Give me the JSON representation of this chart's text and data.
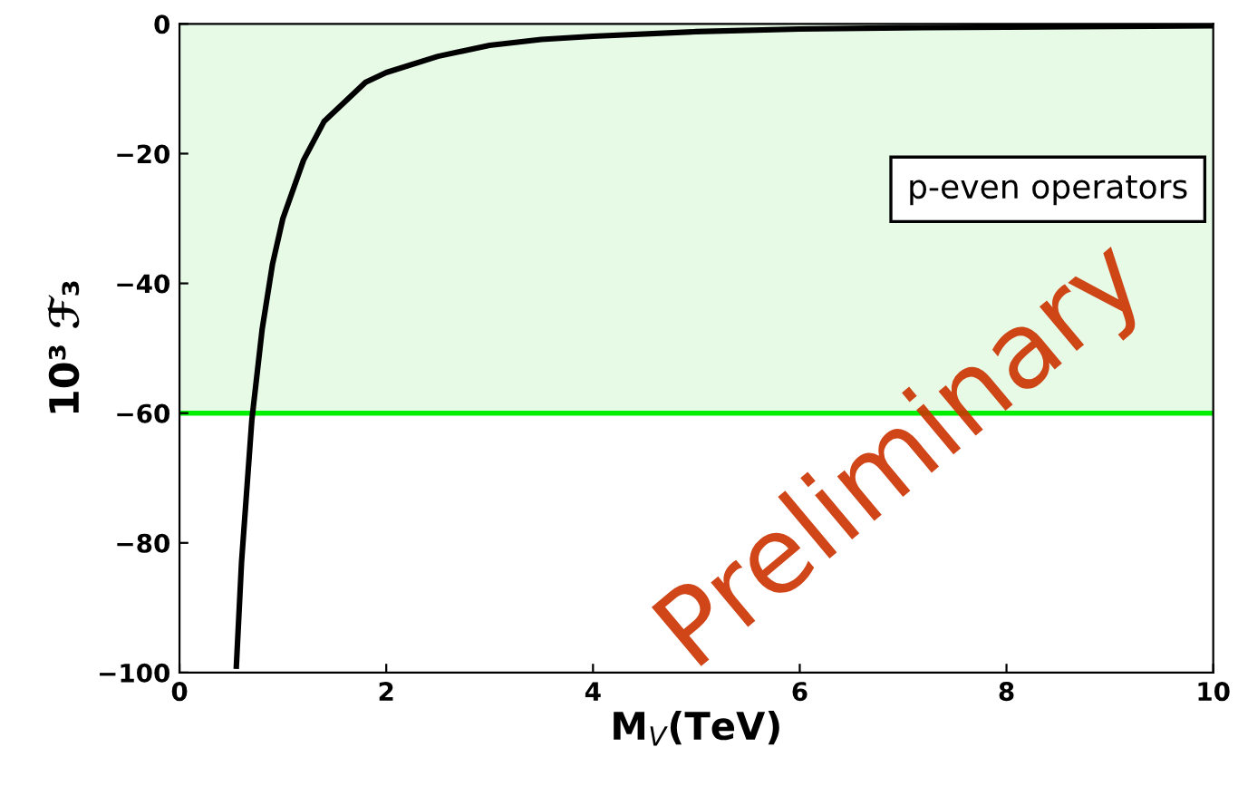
{
  "chart_data": {
    "type": "line",
    "xlabel": "M$_{V}$(TeV)",
    "ylabel": "10³ ℱ₃",
    "x": [
      0.55,
      0.6,
      0.7,
      0.8,
      0.9,
      1.0,
      1.2,
      1.4,
      1.6,
      1.8,
      2,
      2.5,
      3,
      3.5,
      4,
      5,
      6,
      7,
      8,
      9,
      10
    ],
    "series": [
      {
        "color": "#000000",
        "values": [
          -99,
          -83,
          -61,
          -47,
          -37,
          -30,
          -21,
          -15,
          -12,
          -9,
          -7.5,
          -5,
          -3.3,
          -2.4,
          -1.9,
          -1.2,
          -0.8,
          -0.6,
          -0.5,
          -0.4,
          -0.3
        ]
      }
    ],
    "xlim": [
      0,
      10
    ],
    "xticks": [
      0,
      2,
      4,
      6,
      8,
      10
    ],
    "ylim": [
      -100,
      0
    ],
    "yticks": [
      -100,
      -80,
      -60,
      -40,
      -20,
      0
    ],
    "bands": [
      {
        "axis": "y",
        "from": -60,
        "to": 0,
        "color": "#e6fae6"
      }
    ],
    "ref_lines": [
      {
        "axis": "y",
        "value": -60,
        "color": "#00ee00"
      }
    ],
    "annotations": [
      "p-even operators",
      "Preliminary"
    ],
    "grid": false,
    "legend": false,
    "marker": "none",
    "line_style": "solid"
  }
}
